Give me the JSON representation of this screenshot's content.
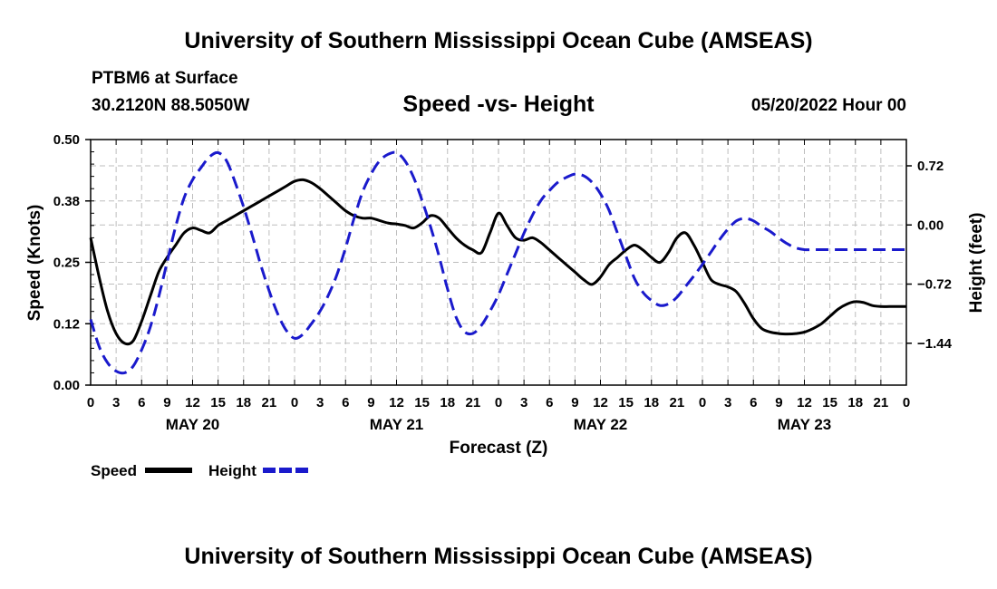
{
  "header": {
    "title": "University of Southern Mississippi Ocean Cube (AMSEAS)",
    "station": "PTBM6 at Surface",
    "coords": "30.2120N  88.5050W",
    "subtitle": "Speed -vs- Height",
    "date": "05/20/2022 Hour 00"
  },
  "footer": {
    "title": "University of Southern Mississippi Ocean Cube (AMSEAS)"
  },
  "chart_data": {
    "type": "line",
    "title": "Speed -vs- Height",
    "xlabel": "Forecast (Z)",
    "ylabel": "Speed (Knots)",
    "y2label": "Height (feet)",
    "xlim": [
      0,
      96
    ],
    "ylim": [
      0,
      0.5
    ],
    "y2lim": [
      -1.95,
      1.04
    ],
    "grid": true,
    "x_tick_labels": [
      "0",
      "3",
      "6",
      "9",
      "12",
      "15",
      "18",
      "21",
      "0",
      "3",
      "6",
      "9",
      "12",
      "15",
      "18",
      "21",
      "0",
      "3",
      "6",
      "9",
      "12",
      "15",
      "18",
      "21",
      "0",
      "3",
      "6",
      "9",
      "12",
      "15",
      "18",
      "21",
      "0"
    ],
    "y_tick_values": [
      0,
      0.125,
      0.25,
      0.375,
      0.5
    ],
    "y_tick_labels": [
      "0.00",
      "0.12",
      "0.25",
      "0.38",
      "0.50"
    ],
    "y2_tick_values": [
      -1.44,
      -0.72,
      0,
      0.72
    ],
    "y2_tick_labels": [
      "−1.44",
      "−0.72",
      "0.00",
      "0.72"
    ],
    "day_labels": [
      {
        "label": "MAY 20",
        "x": 12
      },
      {
        "label": "MAY 21",
        "x": 36
      },
      {
        "label": "MAY 22",
        "x": 60
      },
      {
        "label": "MAY 23",
        "x": 84
      }
    ],
    "legend": [
      {
        "label": "Speed",
        "color": "#000000",
        "style": "solid"
      },
      {
        "label": "Height",
        "color": "#1a1acc",
        "style": "dashed"
      }
    ],
    "series": [
      {
        "name": "Speed",
        "axis": "left",
        "color": "#000000",
        "x": [
          0,
          1,
          2,
          3,
          4,
          5,
          6,
          7,
          8,
          9,
          10,
          11,
          12,
          13,
          14,
          15,
          16,
          17,
          18,
          19,
          20,
          21,
          22,
          23,
          24,
          25,
          26,
          27,
          28,
          29,
          30,
          31,
          32,
          33,
          34,
          35,
          36,
          37,
          38,
          39,
          40,
          41,
          42,
          43,
          44,
          45,
          46,
          47,
          48,
          49,
          50,
          51,
          52,
          53,
          54,
          55,
          56,
          57,
          58,
          59,
          60,
          61,
          62,
          63,
          64,
          65,
          66,
          67,
          68,
          69,
          70,
          71,
          72,
          73,
          74,
          75,
          76,
          77,
          78,
          79,
          80,
          81,
          82,
          83,
          84,
          85,
          86,
          87,
          88,
          89,
          90,
          91,
          92,
          93,
          94,
          95,
          96
        ],
        "values": [
          0.3,
          0.22,
          0.15,
          0.105,
          0.085,
          0.09,
          0.13,
          0.18,
          0.23,
          0.26,
          0.285,
          0.31,
          0.32,
          0.315,
          0.31,
          0.325,
          0.335,
          0.345,
          0.355,
          0.365,
          0.375,
          0.385,
          0.395,
          0.405,
          0.415,
          0.418,
          0.412,
          0.4,
          0.385,
          0.37,
          0.355,
          0.345,
          0.34,
          0.34,
          0.335,
          0.33,
          0.328,
          0.325,
          0.32,
          0.33,
          0.345,
          0.34,
          0.32,
          0.3,
          0.285,
          0.275,
          0.27,
          0.31,
          0.35,
          0.325,
          0.3,
          0.295,
          0.3,
          0.29,
          0.275,
          0.26,
          0.245,
          0.23,
          0.215,
          0.205,
          0.22,
          0.245,
          0.26,
          0.275,
          0.285,
          0.275,
          0.26,
          0.25,
          0.27,
          0.3,
          0.31,
          0.285,
          0.25,
          0.215,
          0.205,
          0.2,
          0.19,
          0.165,
          0.135,
          0.115,
          0.108,
          0.105,
          0.104,
          0.105,
          0.108,
          0.115,
          0.125,
          0.14,
          0.155,
          0.165,
          0.17,
          0.168,
          0.162,
          0.16,
          0.16,
          0.16,
          0.16
        ]
      },
      {
        "name": "Height",
        "axis": "right",
        "color": "#1a1acc",
        "x": [
          0,
          1,
          2,
          3,
          4,
          5,
          6,
          7,
          8,
          9,
          10,
          11,
          12,
          13,
          14,
          15,
          16,
          17,
          18,
          19,
          20,
          21,
          22,
          23,
          24,
          25,
          26,
          27,
          28,
          29,
          30,
          31,
          32,
          33,
          34,
          35,
          36,
          37,
          38,
          39,
          40,
          41,
          42,
          43,
          44,
          45,
          46,
          47,
          48,
          49,
          50,
          51,
          52,
          53,
          54,
          55,
          56,
          57,
          58,
          59,
          60,
          61,
          62,
          63,
          64,
          65,
          66,
          67,
          68,
          69,
          70,
          71,
          72,
          73,
          74,
          75,
          76,
          77,
          78,
          79,
          80,
          81,
          82,
          83,
          84,
          85,
          86,
          87,
          88,
          89,
          90,
          91,
          92,
          93,
          94,
          95,
          96
        ],
        "values": [
          -1.15,
          -1.48,
          -1.68,
          -1.78,
          -1.8,
          -1.72,
          -1.52,
          -1.25,
          -0.88,
          -0.45,
          -0.02,
          0.33,
          0.55,
          0.7,
          0.83,
          0.88,
          0.78,
          0.52,
          0.22,
          -0.12,
          -0.48,
          -0.8,
          -1.08,
          -1.28,
          -1.38,
          -1.33,
          -1.2,
          -1.05,
          -0.85,
          -0.6,
          -0.28,
          0.08,
          0.4,
          0.62,
          0.78,
          0.86,
          0.88,
          0.78,
          0.58,
          0.3,
          -0.02,
          -0.38,
          -0.78,
          -1.12,
          -1.3,
          -1.32,
          -1.22,
          -1.05,
          -0.85,
          -0.6,
          -0.35,
          -0.1,
          0.12,
          0.3,
          0.42,
          0.52,
          0.58,
          0.62,
          0.6,
          0.52,
          0.38,
          0.18,
          -0.1,
          -0.38,
          -0.65,
          -0.82,
          -0.92,
          -0.98,
          -0.96,
          -0.88,
          -0.75,
          -0.62,
          -0.48,
          -0.33,
          -0.18,
          -0.05,
          0.05,
          0.08,
          0.05,
          -0.02,
          -0.08,
          -0.16,
          -0.23,
          -0.28,
          -0.3,
          -0.3,
          -0.3,
          -0.3,
          -0.3,
          -0.3,
          -0.3,
          -0.3,
          -0.3,
          -0.3,
          -0.3,
          -0.3,
          -0.3
        ]
      }
    ]
  }
}
